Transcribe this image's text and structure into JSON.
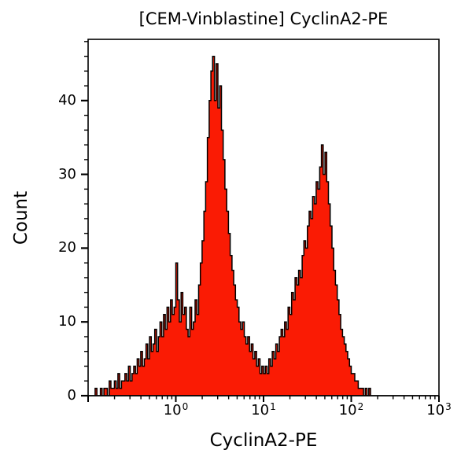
{
  "title": "[CEM-Vinblastine] CyclinA2-PE",
  "chart_data": {
    "type": "histogram",
    "title": "[CEM-Vinblastine] CyclinA2-PE",
    "xlabel": "CyclinA2-PE",
    "ylabel": "Count",
    "x_scale": "log10",
    "xlim_exponents": [
      -1,
      3
    ],
    "x_tick_base": "10",
    "x_tick_exponents": [
      0,
      1,
      2,
      3
    ],
    "y_ticks": [
      0,
      10,
      20,
      30,
      40
    ],
    "y_minor_step": 2,
    "ylim": [
      0,
      48.3
    ],
    "grid": false,
    "legend": "none",
    "fill_color": "#fa1b04",
    "outline_color": "#000000",
    "bins": {
      "log10_start": -1,
      "log10_step": 0.02,
      "counts": [
        0,
        0,
        0,
        0,
        1,
        0,
        0,
        1,
        0,
        1,
        1,
        0,
        2,
        1,
        1,
        2,
        1,
        3,
        1,
        2,
        2,
        3,
        2,
        4,
        2,
        3,
        4,
        3,
        5,
        4,
        6,
        4,
        5,
        7,
        5,
        8,
        6,
        7,
        9,
        6,
        8,
        10,
        8,
        11,
        9,
        12,
        10,
        13,
        11,
        12,
        18,
        13,
        10,
        14,
        11,
        12,
        9,
        8,
        12,
        9,
        10,
        13,
        11,
        15,
        18,
        21,
        25,
        29,
        35,
        40,
        44,
        46,
        40,
        45,
        39,
        42,
        36,
        32,
        28,
        25,
        22,
        19,
        17,
        15,
        13,
        12,
        10,
        9,
        10,
        8,
        7,
        8,
        6,
        7,
        5,
        6,
        4,
        5,
        3,
        4,
        3,
        4,
        3,
        5,
        4,
        6,
        5,
        7,
        6,
        8,
        9,
        8,
        10,
        9,
        12,
        11,
        14,
        13,
        16,
        15,
        17,
        16,
        19,
        21,
        20,
        23,
        25,
        24,
        27,
        26,
        29,
        28,
        31,
        34,
        30,
        33,
        29,
        26,
        23,
        20,
        17,
        15,
        13,
        11,
        9,
        8,
        7,
        6,
        5,
        4,
        3,
        3,
        2,
        2,
        1,
        1,
        1,
        0,
        1,
        0,
        1,
        0,
        0,
        0,
        0,
        0,
        0,
        0,
        0,
        0,
        0,
        0,
        0,
        0,
        0,
        0,
        0,
        0,
        0,
        0,
        0,
        0,
        0,
        0,
        0,
        0,
        0,
        0,
        0,
        0,
        0,
        0,
        0,
        0,
        0,
        0,
        0,
        0,
        0,
        0
      ]
    }
  }
}
